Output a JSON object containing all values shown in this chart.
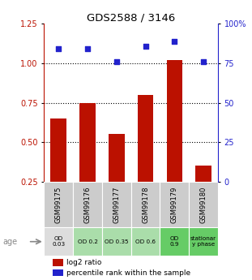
{
  "title": "GDS2588 / 3146",
  "samples": [
    "GSM99175",
    "GSM99176",
    "GSM99177",
    "GSM99178",
    "GSM99179",
    "GSM99180"
  ],
  "log2_ratio": [
    0.65,
    0.75,
    0.55,
    0.8,
    1.02,
    0.35
  ],
  "percentile_rank_pct": [
    84,
    84,
    76,
    86,
    89,
    76
  ],
  "bar_color": "#bb1100",
  "dot_color": "#2222cc",
  "ylim_left": [
    0.25,
    1.25
  ],
  "ylim_right": [
    0,
    100
  ],
  "yticks_left": [
    0.25,
    0.5,
    0.75,
    1.0,
    1.25
  ],
  "yticks_right": [
    0,
    25,
    50,
    75,
    100
  ],
  "hlines": [
    0.5,
    0.75,
    1.0
  ],
  "age_labels": [
    "OD\n0.03",
    "OD 0.2",
    "OD 0.35",
    "OD 0.6",
    "OD\n0.9",
    "stationar\ny phase"
  ],
  "age_bg_colors": [
    "#dddddd",
    "#aaddaa",
    "#aaddaa",
    "#aaddaa",
    "#66cc66",
    "#66cc66"
  ],
  "sample_bg_color": "#cccccc",
  "legend_log2": "log2 ratio",
  "legend_pct": "percentile rank within the sample"
}
